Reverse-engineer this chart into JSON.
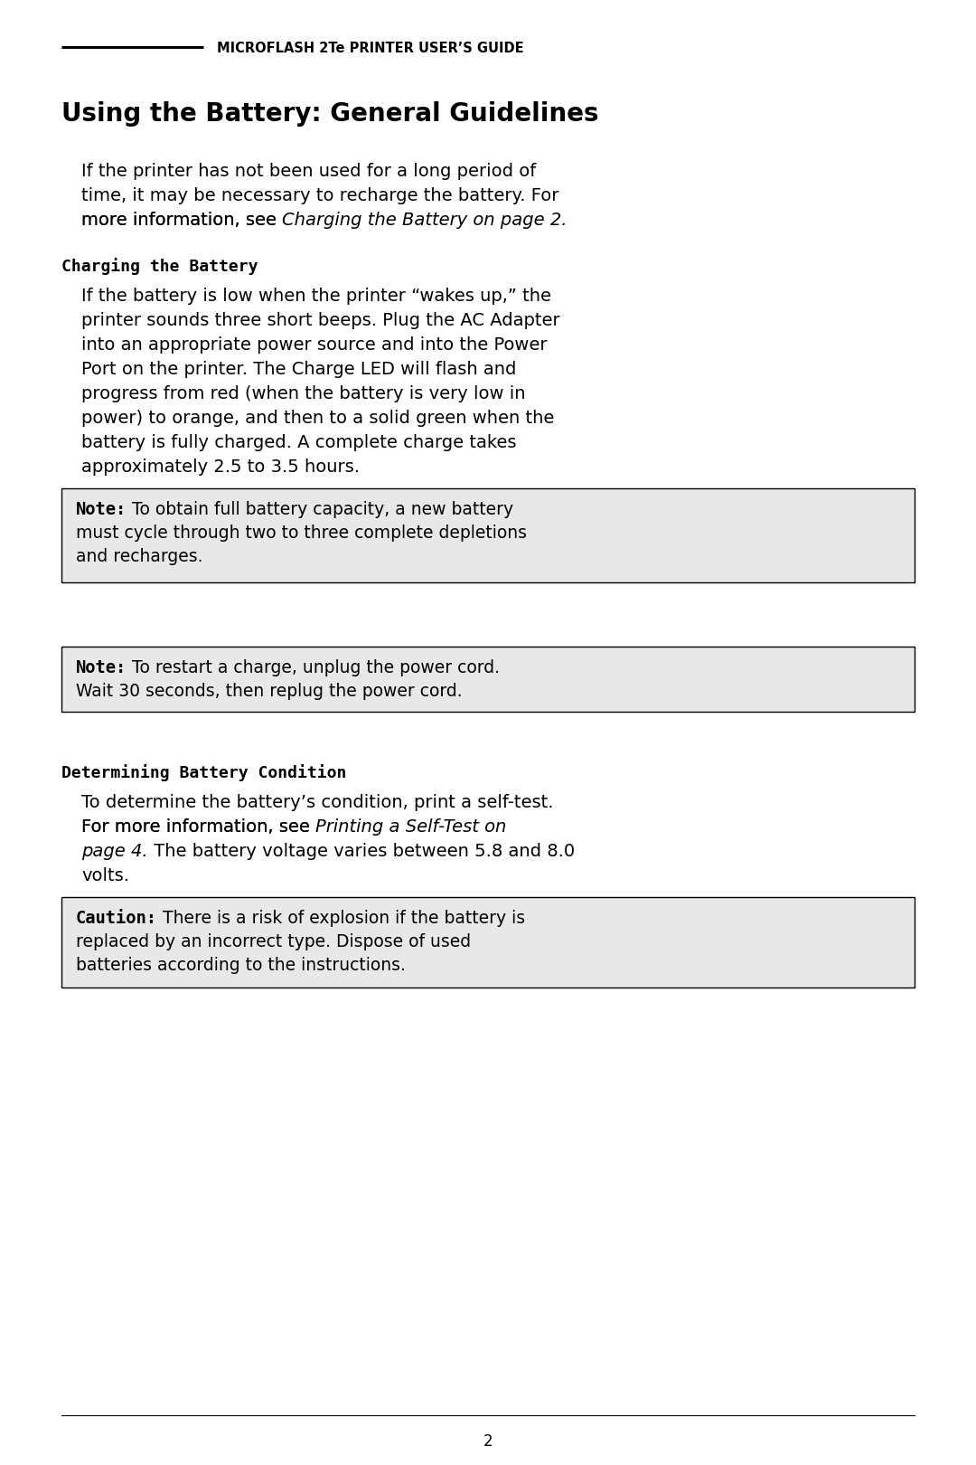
{
  "header_text": "MICROFLASH 2Te PRINTER USER’S GUIDE",
  "title": "Using the Battery: General Guidelines",
  "section1_heading": "Charging the Battery",
  "section1_lines": [
    "If the battery is low when the printer “wakes up,” the",
    "printer sounds three short beeps. Plug the AC Adapter",
    "into an appropriate power source and into the Power",
    "Port on the printer. The Charge LED will flash and",
    "progress from red (when the battery is very low in",
    "power) to orange, and then to a solid green when the",
    "battery is fully charged. A complete charge takes",
    "approximately 2.5 to 3.5 hours."
  ],
  "note1_label": "Note:",
  "note1_lines": [
    " To obtain full battery capacity, a new battery",
    "must cycle through two to three complete depletions",
    "and recharges."
  ],
  "note2_label": "Note:",
  "note2_lines": [
    " To restart a charge, unplug the power cord.",
    "Wait 30 seconds, then replug the power cord."
  ],
  "section2_heading": "Determining Battery Condition",
  "section2_line1": "To determine the battery’s condition, print a self-test.",
  "section2_line2_pre": "For more information, see ",
  "section2_line2_italic": "Printing a Self-Test on",
  "section2_line3_italic": "page 4.",
  "section2_line3_rest": " The battery voltage varies between 5.8 and 8.0",
  "section2_line4": "volts.",
  "caution_label": "Caution:",
  "caution_lines": [
    " There is a risk of explosion if the battery is",
    "replaced by an incorrect type. Dispose of used",
    "batteries according to the instructions."
  ],
  "intro_line1": "If the printer has not been used for a long period of",
  "intro_line2": "time, it may be necessary to recharge the battery. For",
  "intro_line3_pre": "more information, see ",
  "intro_line3_italic": "Charging the Battery on page 2.",
  "page_number": "2",
  "bg_color": "#ffffff",
  "text_color": "#000000",
  "note_bg_color": "#e8e8e8",
  "line_color": "#000000"
}
